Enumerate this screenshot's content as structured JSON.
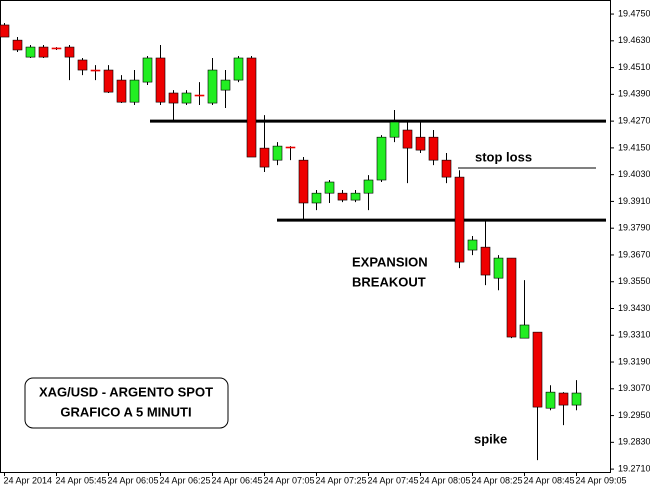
{
  "chart_data": {
    "type": "candlestick",
    "title": "XAG/USD - ARGENTO SPOT",
    "subtitle": "GRAFICO A 5 MINUTI",
    "annotations": [
      "stop loss",
      "EXPANSION",
      "BREAKOUT",
      "spike"
    ],
    "levels": [
      19.427,
      19.3826,
      19.406
    ],
    "categories": [
      "24 Apr 2014",
      null,
      null,
      null,
      "24 Apr 05:45",
      null,
      null,
      null,
      "24 Apr 06:05",
      null,
      null,
      null,
      "24 Apr 06:25",
      null,
      null,
      null,
      "24 Apr 06:45",
      null,
      null,
      null,
      "24 Apr 07:05",
      null,
      null,
      null,
      "24 Apr 07:25",
      null,
      null,
      null,
      "24 Apr 07:45",
      null,
      null,
      null,
      "24 Apr 08:05",
      null,
      null,
      null,
      "24 Apr 08:25",
      null,
      null,
      null,
      "24 Apr 08:45",
      null,
      null,
      null,
      "24 Apr 09:05"
    ],
    "open": [
      19.4701,
      19.4633,
      19.4557,
      19.4602,
      19.4598,
      19.4602,
      19.4544,
      19.4499,
      19.4499,
      19.4454,
      19.4355,
      19.4445,
      19.4553,
      19.4396,
      19.4351,
      19.4387,
      19.4351,
      19.4409,
      19.4454,
      19.4553,
      19.4149,
      19.4095,
      19.4154,
      19.4095,
      19.3903,
      19.3947,
      19.3947,
      19.3916,
      19.3947,
      19.4006,
      19.4198,
      19.423,
      19.4198,
      19.4198,
      19.4095,
      19.4019,
      19.3692,
      19.3705,
      19.3566,
      19.3656,
      19.3297,
      19.3324,
      19.2983,
      19.3051,
      19.2997
    ],
    "high": [
      19.471,
      19.4647,
      19.4611,
      19.4611,
      19.4602,
      19.4611,
      19.4553,
      19.4521,
      19.4521,
      19.4476,
      19.4499,
      19.4562,
      19.4611,
      19.4409,
      19.4409,
      19.4445,
      19.4553,
      19.4499,
      19.4562,
      19.4562,
      19.4297,
      19.4176,
      19.4158,
      19.4109,
      19.3961,
      19.4006,
      19.3961,
      19.3961,
      19.4028,
      19.4207,
      19.432,
      19.4266,
      19.4266,
      19.423,
      19.4127,
      19.405,
      19.3755,
      19.3826,
      19.3669,
      19.3656,
      19.3557,
      19.3324,
      19.3086,
      19.3055,
      19.3109
    ],
    "low": [
      19.4647,
      19.458,
      19.4553,
      19.4553,
      19.4589,
      19.4454,
      19.4476,
      19.4454,
      19.4396,
      19.4351,
      19.4342,
      19.4432,
      19.4342,
      19.4275,
      19.4342,
      19.4342,
      19.4342,
      19.4329,
      19.4445,
      19.4109,
      19.4042,
      19.4073,
      19.4095,
      19.3826,
      19.3871,
      19.3903,
      19.3907,
      19.3907,
      19.3871,
      19.3997,
      19.4176,
      19.3992,
      19.4127,
      19.4073,
      19.3992,
      19.3611,
      19.3669,
      19.3535,
      19.3512,
      19.3297,
      19.3297,
      19.275,
      19.2974,
      19.2907,
      19.2974
    ],
    "close": [
      19.4647,
      19.4589,
      19.4602,
      19.4557,
      19.4596,
      19.4557,
      19.4499,
      19.4497,
      19.44,
      19.4355,
      19.4454,
      19.4553,
      19.4355,
      19.4351,
      19.4396,
      19.4385,
      19.4499,
      19.4454,
      19.4553,
      19.4109,
      19.4064,
      19.4158,
      19.4152,
      19.3903,
      19.3947,
      19.3997,
      19.3916,
      19.3947,
      19.4006,
      19.4198,
      19.4266,
      19.4149,
      19.414,
      19.4095,
      19.4019,
      19.3638,
      19.3737,
      19.358,
      19.3656,
      19.3302,
      19.3356,
      19.2988,
      19.3055,
      19.2997,
      19.3051
    ],
    "up_color": "#22ee22",
    "down_color": "#ee0000",
    "ylim": [
      19.2697,
      19.4813
    ],
    "yticks": [
      {
        "value": 19.475,
        "label": "19.4750"
      },
      {
        "value": 19.463,
        "label": "19.4630"
      },
      {
        "value": 19.451,
        "label": "19.4510"
      },
      {
        "value": 19.439,
        "label": "19.4390"
      },
      {
        "value": 19.427,
        "label": "19.4270"
      },
      {
        "value": 19.415,
        "label": "19.4150"
      },
      {
        "value": 19.403,
        "label": "19.4030"
      },
      {
        "value": 19.391,
        "label": "19.3910"
      },
      {
        "value": 19.379,
        "label": "19.3790"
      },
      {
        "value": 19.367,
        "label": "19.3670"
      },
      {
        "value": 19.355,
        "label": "19.3550"
      },
      {
        "value": 19.343,
        "label": "19.3430"
      },
      {
        "value": 19.331,
        "label": "19.3310"
      },
      {
        "value": 19.319,
        "label": "19.3190"
      },
      {
        "value": 19.307,
        "label": "19.3070"
      },
      {
        "value": 19.295,
        "label": "19.2950"
      },
      {
        "value": 19.283,
        "label": "19.2830"
      },
      {
        "value": 19.271,
        "label": "19.2710"
      }
    ]
  }
}
